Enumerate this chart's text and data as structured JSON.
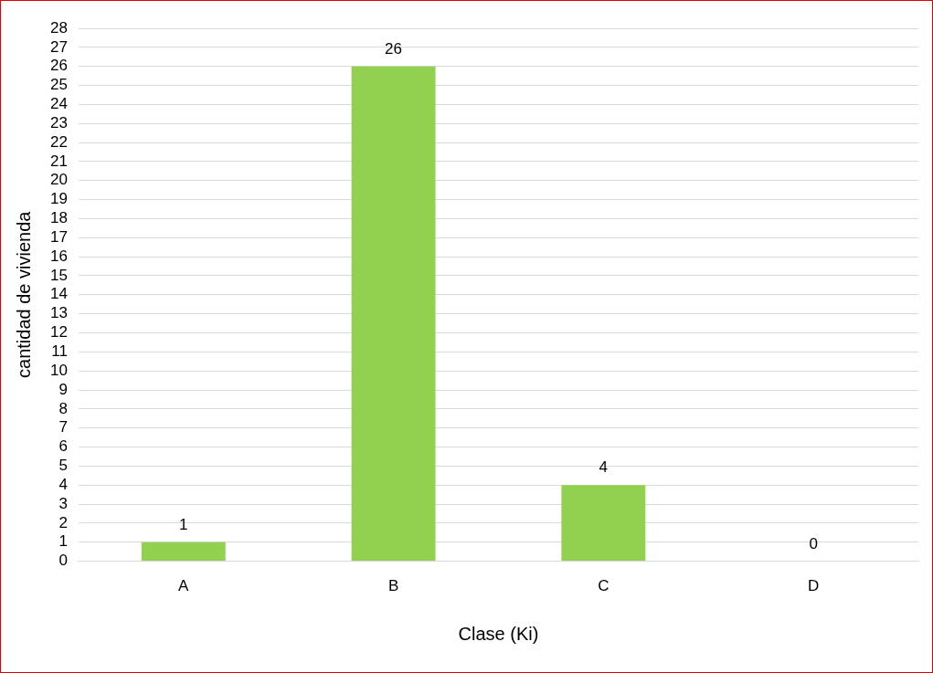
{
  "chart_data": {
    "type": "bar",
    "xlabel": "Clase (Ki)",
    "ylabel": "cantidad de vivienda",
    "categories": [
      "A",
      "B",
      "C",
      "D"
    ],
    "values": [
      1,
      26,
      4,
      0
    ],
    "color": "#92d050",
    "ylim": [
      0,
      28
    ],
    "yticks": [
      0,
      1,
      2,
      3,
      4,
      5,
      6,
      7,
      8,
      9,
      10,
      11,
      12,
      13,
      14,
      15,
      16,
      17,
      18,
      19,
      20,
      21,
      22,
      23,
      24,
      25,
      26,
      27,
      28
    ],
    "grid": "y",
    "data_labels": true,
    "legend": false
  }
}
